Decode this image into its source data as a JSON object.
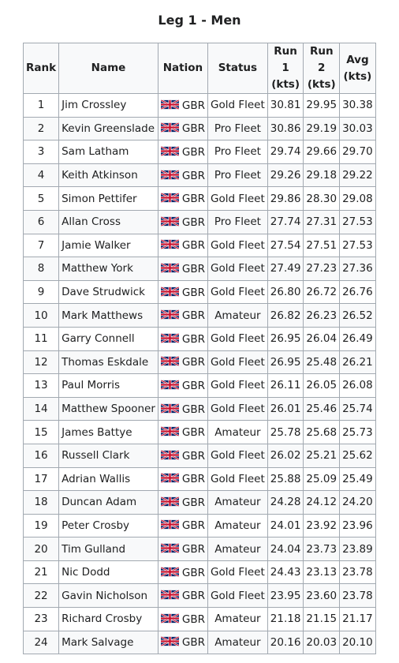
{
  "title": "Leg 1 - Men",
  "columns": {
    "rank": "Rank",
    "name": "Name",
    "nation": "Nation",
    "status": "Status",
    "run1": "Run 1 (kts)",
    "run2": "Run 2 (kts)",
    "avg": "Avg (kts)"
  },
  "flag_icon": "uk-flag-icon",
  "colors": {
    "header_bg": "#f8f9fa",
    "border": "#a2a9b1",
    "row_alt": "#f8f9fa"
  },
  "rows": [
    {
      "rank": "1",
      "name": "Jim Crossley",
      "nation": "GBR",
      "status": "Gold Fleet",
      "run1": "30.81",
      "run2": "29.95",
      "avg": "30.38"
    },
    {
      "rank": "2",
      "name": "Kevin Greenslade",
      "nation": "GBR",
      "status": "Pro Fleet",
      "run1": "30.86",
      "run2": "29.19",
      "avg": "30.03"
    },
    {
      "rank": "3",
      "name": "Sam Latham",
      "nation": "GBR",
      "status": "Pro Fleet",
      "run1": "29.74",
      "run2": "29.66",
      "avg": "29.70"
    },
    {
      "rank": "4",
      "name": "Keith Atkinson",
      "nation": "GBR",
      "status": "Pro Fleet",
      "run1": "29.26",
      "run2": "29.18",
      "avg": "29.22"
    },
    {
      "rank": "5",
      "name": "Simon Pettifer",
      "nation": "GBR",
      "status": "Gold Fleet",
      "run1": "29.86",
      "run2": "28.30",
      "avg": "29.08"
    },
    {
      "rank": "6",
      "name": "Allan Cross",
      "nation": "GBR",
      "status": "Pro Fleet",
      "run1": "27.74",
      "run2": "27.31",
      "avg": "27.53"
    },
    {
      "rank": "7",
      "name": "Jamie Walker",
      "nation": "GBR",
      "status": "Gold Fleet",
      "run1": "27.54",
      "run2": "27.51",
      "avg": "27.53"
    },
    {
      "rank": "8",
      "name": "Matthew York",
      "nation": "GBR",
      "status": "Gold Fleet",
      "run1": "27.49",
      "run2": "27.23",
      "avg": "27.36"
    },
    {
      "rank": "9",
      "name": "Dave Strudwick",
      "nation": "GBR",
      "status": "Gold Fleet",
      "run1": "26.80",
      "run2": "26.72",
      "avg": "26.76"
    },
    {
      "rank": "10",
      "name": "Mark Matthews",
      "nation": "GBR",
      "status": "Amateur",
      "run1": "26.82",
      "run2": "26.23",
      "avg": "26.52"
    },
    {
      "rank": "11",
      "name": "Garry Connell",
      "nation": "GBR",
      "status": "Gold Fleet",
      "run1": "26.95",
      "run2": "26.04",
      "avg": "26.49"
    },
    {
      "rank": "12",
      "name": "Thomas Eskdale",
      "nation": "GBR",
      "status": "Gold Fleet",
      "run1": "26.95",
      "run2": "25.48",
      "avg": "26.21"
    },
    {
      "rank": "13",
      "name": "Paul Morris",
      "nation": "GBR",
      "status": "Gold Fleet",
      "run1": "26.11",
      "run2": "26.05",
      "avg": "26.08"
    },
    {
      "rank": "14",
      "name": "Matthew Spooner",
      "nation": "GBR",
      "status": "Gold Fleet",
      "run1": "26.01",
      "run2": "25.46",
      "avg": "25.74"
    },
    {
      "rank": "15",
      "name": "James Battye",
      "nation": "GBR",
      "status": "Amateur",
      "run1": "25.78",
      "run2": "25.68",
      "avg": "25.73"
    },
    {
      "rank": "16",
      "name": "Russell Clark",
      "nation": "GBR",
      "status": "Gold Fleet",
      "run1": "26.02",
      "run2": "25.21",
      "avg": "25.62"
    },
    {
      "rank": "17",
      "name": "Adrian Wallis",
      "nation": "GBR",
      "status": "Gold Fleet",
      "run1": "25.88",
      "run2": "25.09",
      "avg": "25.49"
    },
    {
      "rank": "18",
      "name": "Duncan Adam",
      "nation": "GBR",
      "status": "Amateur",
      "run1": "24.28",
      "run2": "24.12",
      "avg": "24.20"
    },
    {
      "rank": "19",
      "name": "Peter Crosby",
      "nation": "GBR",
      "status": "Amateur",
      "run1": "24.01",
      "run2": "23.92",
      "avg": "23.96"
    },
    {
      "rank": "20",
      "name": "Tim Gulland",
      "nation": "GBR",
      "status": "Amateur",
      "run1": "24.04",
      "run2": "23.73",
      "avg": "23.89"
    },
    {
      "rank": "21",
      "name": "Nic Dodd",
      "nation": "GBR",
      "status": "Gold Fleet",
      "run1": "24.43",
      "run2": "23.13",
      "avg": "23.78"
    },
    {
      "rank": "22",
      "name": "Gavin Nicholson",
      "nation": "GBR",
      "status": "Gold Fleet",
      "run1": "23.95",
      "run2": "23.60",
      "avg": "23.78"
    },
    {
      "rank": "23",
      "name": "Richard Crosby",
      "nation": "GBR",
      "status": "Amateur",
      "run1": "21.18",
      "run2": "21.15",
      "avg": "21.17"
    },
    {
      "rank": "24",
      "name": "Mark Salvage",
      "nation": "GBR",
      "status": "Amateur",
      "run1": "20.16",
      "run2": "20.03",
      "avg": "20.10"
    }
  ]
}
